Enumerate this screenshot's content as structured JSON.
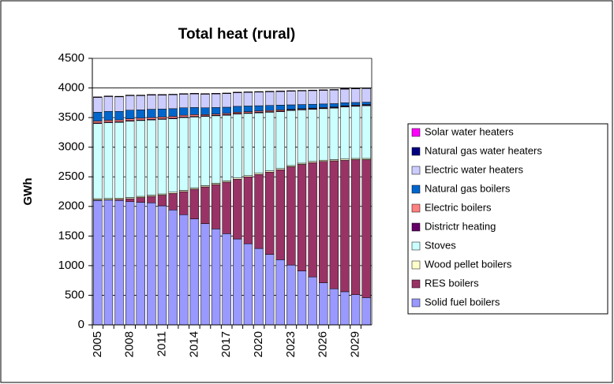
{
  "chart_data": {
    "type": "stacked-bar",
    "title": "Total heat (rural)",
    "y_label": "GWh",
    "categories": [
      "2005",
      null,
      null,
      "2008",
      null,
      null,
      "2011",
      null,
      null,
      "2014",
      null,
      null,
      "2017",
      null,
      null,
      "2020",
      null,
      null,
      "2023",
      null,
      null,
      "2026",
      null,
      null,
      "2029",
      null
    ],
    "ylim": [
      0,
      4500
    ],
    "yticks": [
      0,
      500,
      1000,
      1500,
      2000,
      2500,
      3000,
      3500,
      4000,
      4500
    ],
    "grid": true,
    "series": [
      {
        "name": "Solid fuel boilers",
        "color": "#9999ff",
        "values": [
          2100,
          2110,
          2100,
          2080,
          2070,
          2060,
          2010,
          1940,
          1860,
          1790,
          1710,
          1620,
          1540,
          1450,
          1370,
          1290,
          1190,
          1100,
          1010,
          910,
          810,
          710,
          610,
          560,
          510,
          460
        ]
      },
      {
        "name": "RES boilers",
        "color": "#993366",
        "values": [
          10,
          5,
          20,
          50,
          80,
          110,
          180,
          280,
          390,
          500,
          620,
          750,
          870,
          1010,
          1130,
          1250,
          1390,
          1520,
          1660,
          1800,
          1930,
          2050,
          2160,
          2220,
          2280,
          2330
        ]
      },
      {
        "name": "Wood pellet boilers",
        "color": "#ffffcc",
        "values": [
          20,
          20,
          20,
          20,
          20,
          20,
          20,
          20,
          20,
          20,
          20,
          20,
          20,
          20,
          20,
          20,
          20,
          20,
          20,
          20,
          20,
          20,
          20,
          20,
          20,
          20
        ]
      },
      {
        "name": "Stoves",
        "color": "#ccffff",
        "values": [
          1270,
          1280,
          1280,
          1290,
          1280,
          1270,
          1260,
          1240,
          1230,
          1200,
          1170,
          1140,
          1110,
          1080,
          1050,
          1020,
          990,
          960,
          930,
          900,
          880,
          870,
          870,
          880,
          880,
          890
        ]
      },
      {
        "name": "Districtr heating",
        "color": "#660066",
        "values": [
          10,
          10,
          10,
          10,
          10,
          10,
          10,
          10,
          10,
          10,
          10,
          10,
          10,
          10,
          10,
          10,
          10,
          10,
          10,
          10,
          10,
          10,
          10,
          10,
          10,
          10
        ]
      },
      {
        "name": "Electric boilers",
        "color": "#ff8080",
        "values": [
          30,
          30,
          30,
          30,
          30,
          30,
          30,
          30,
          30,
          30,
          20,
          20,
          20,
          20,
          20,
          20,
          20,
          20,
          10,
          10,
          10,
          10,
          10,
          10,
          10,
          10
        ]
      },
      {
        "name": "Natural gas boilers",
        "color": "#0066cc",
        "values": [
          150,
          150,
          145,
          145,
          140,
          140,
          135,
          130,
          125,
          120,
          115,
          110,
          105,
          100,
          95,
          90,
          85,
          80,
          75,
          70,
          65,
          60,
          55,
          50,
          45,
          40
        ]
      },
      {
        "name": "Electric water heaters",
        "color": "#ccccff",
        "values": [
          250,
          250,
          245,
          245,
          240,
          240,
          235,
          235,
          230,
          230,
          230,
          230,
          230,
          230,
          230,
          230,
          230,
          230,
          230,
          230,
          230,
          230,
          230,
          230,
          230,
          230
        ]
      },
      {
        "name": "Natural gas water heaters",
        "color": "#000080",
        "values": [
          5,
          5,
          5,
          5,
          5,
          5,
          5,
          5,
          5,
          5,
          5,
          5,
          5,
          5,
          5,
          5,
          5,
          5,
          5,
          5,
          5,
          5,
          5,
          5,
          5,
          5
        ]
      },
      {
        "name": "Solar water heaters",
        "color": "#ff00ff",
        "values": [
          5,
          5,
          5,
          5,
          5,
          5,
          5,
          5,
          5,
          5,
          5,
          5,
          5,
          5,
          5,
          5,
          5,
          5,
          5,
          5,
          5,
          5,
          5,
          5,
          5,
          5
        ]
      }
    ]
  }
}
